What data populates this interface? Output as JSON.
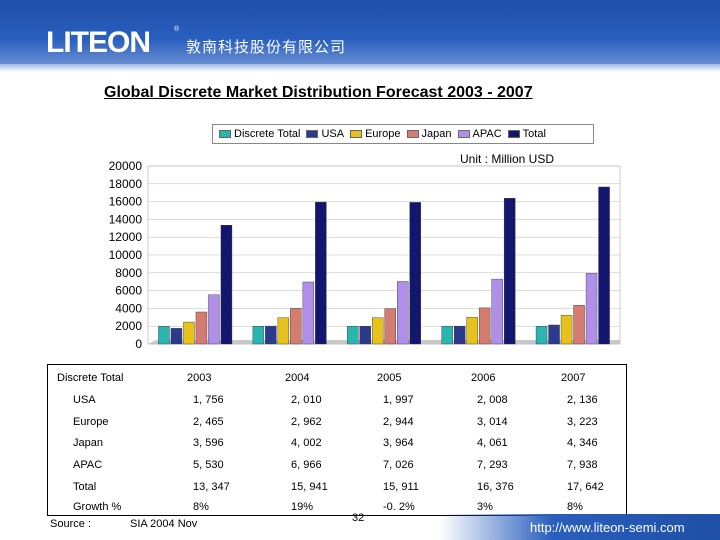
{
  "header": {
    "logo": "LITEON",
    "logo_mark": "®",
    "company": "敦南科技股份有限公司"
  },
  "title": "Global Discrete Market Distribution Forecast 2003 - 2007",
  "unit": "Unit : Million USD",
  "legend": {
    "items": [
      {
        "label": "Discrete Total",
        "color": "#2ab5b0"
      },
      {
        "label": "USA",
        "color": "#2b3a8c"
      },
      {
        "label": "Europe",
        "color": "#e8c21c"
      },
      {
        "label": "Japan",
        "color": "#d47b72"
      },
      {
        "label": "APAC",
        "color": "#b08fe8"
      },
      {
        "label": "Total",
        "color": "#12166e"
      }
    ]
  },
  "chart_data": {
    "type": "bar",
    "title": "Global Discrete Market Distribution Forecast 2003 - 2007",
    "ylabel": "Million USD",
    "ylim": [
      0,
      20000
    ],
    "yticks": [
      "20000",
      "18000",
      "16000",
      "14000",
      "12000",
      "10000",
      "8000",
      "6000",
      "4000",
      "2000",
      "0"
    ],
    "categories": [
      "2003",
      "2004",
      "2005",
      "2006",
      "2007"
    ],
    "series": [
      {
        "name": "Discrete Total",
        "values": [
          2000,
          2000,
          2000,
          2000,
          2000
        ]
      },
      {
        "name": "USA",
        "values": [
          1756,
          2010,
          1997,
          2008,
          2136
        ]
      },
      {
        "name": "Europe",
        "values": [
          2465,
          2962,
          2944,
          3014,
          3223
        ]
      },
      {
        "name": "Japan",
        "values": [
          3596,
          4002,
          3964,
          4061,
          4346
        ]
      },
      {
        "name": "APAC",
        "values": [
          5530,
          6966,
          7026,
          7293,
          7938
        ]
      },
      {
        "name": "Total",
        "values": [
          13347,
          15941,
          15911,
          16376,
          17642
        ]
      }
    ]
  },
  "table": {
    "header": [
      "Discrete Total",
      "2003",
      "2004",
      "2005",
      "2006",
      "2007"
    ],
    "rows": [
      [
        "USA",
        "1, 756",
        "2, 010",
        "1, 997",
        "2, 008",
        "2, 136"
      ],
      [
        "Europe",
        "2, 465",
        "2, 962",
        "2, 944",
        "3, 014",
        "3, 223"
      ],
      [
        "Japan",
        "3, 596",
        "4, 002",
        "3, 964",
        "4, 061",
        "4, 346"
      ],
      [
        "APAC",
        "5, 530",
        "6, 966",
        "7, 026",
        "7, 293",
        "7, 938"
      ],
      [
        "Total",
        "13, 347",
        "15, 941",
        "15, 911",
        "16, 376",
        "17, 642"
      ],
      [
        "Growth %",
        "8%",
        "19%",
        "-0. 2%",
        "3%",
        "8%"
      ]
    ]
  },
  "footer": {
    "source_label": "Source :",
    "source_value": "SIA 2004 Nov",
    "page": "32",
    "url": "http://www.liteon-semi.com"
  }
}
